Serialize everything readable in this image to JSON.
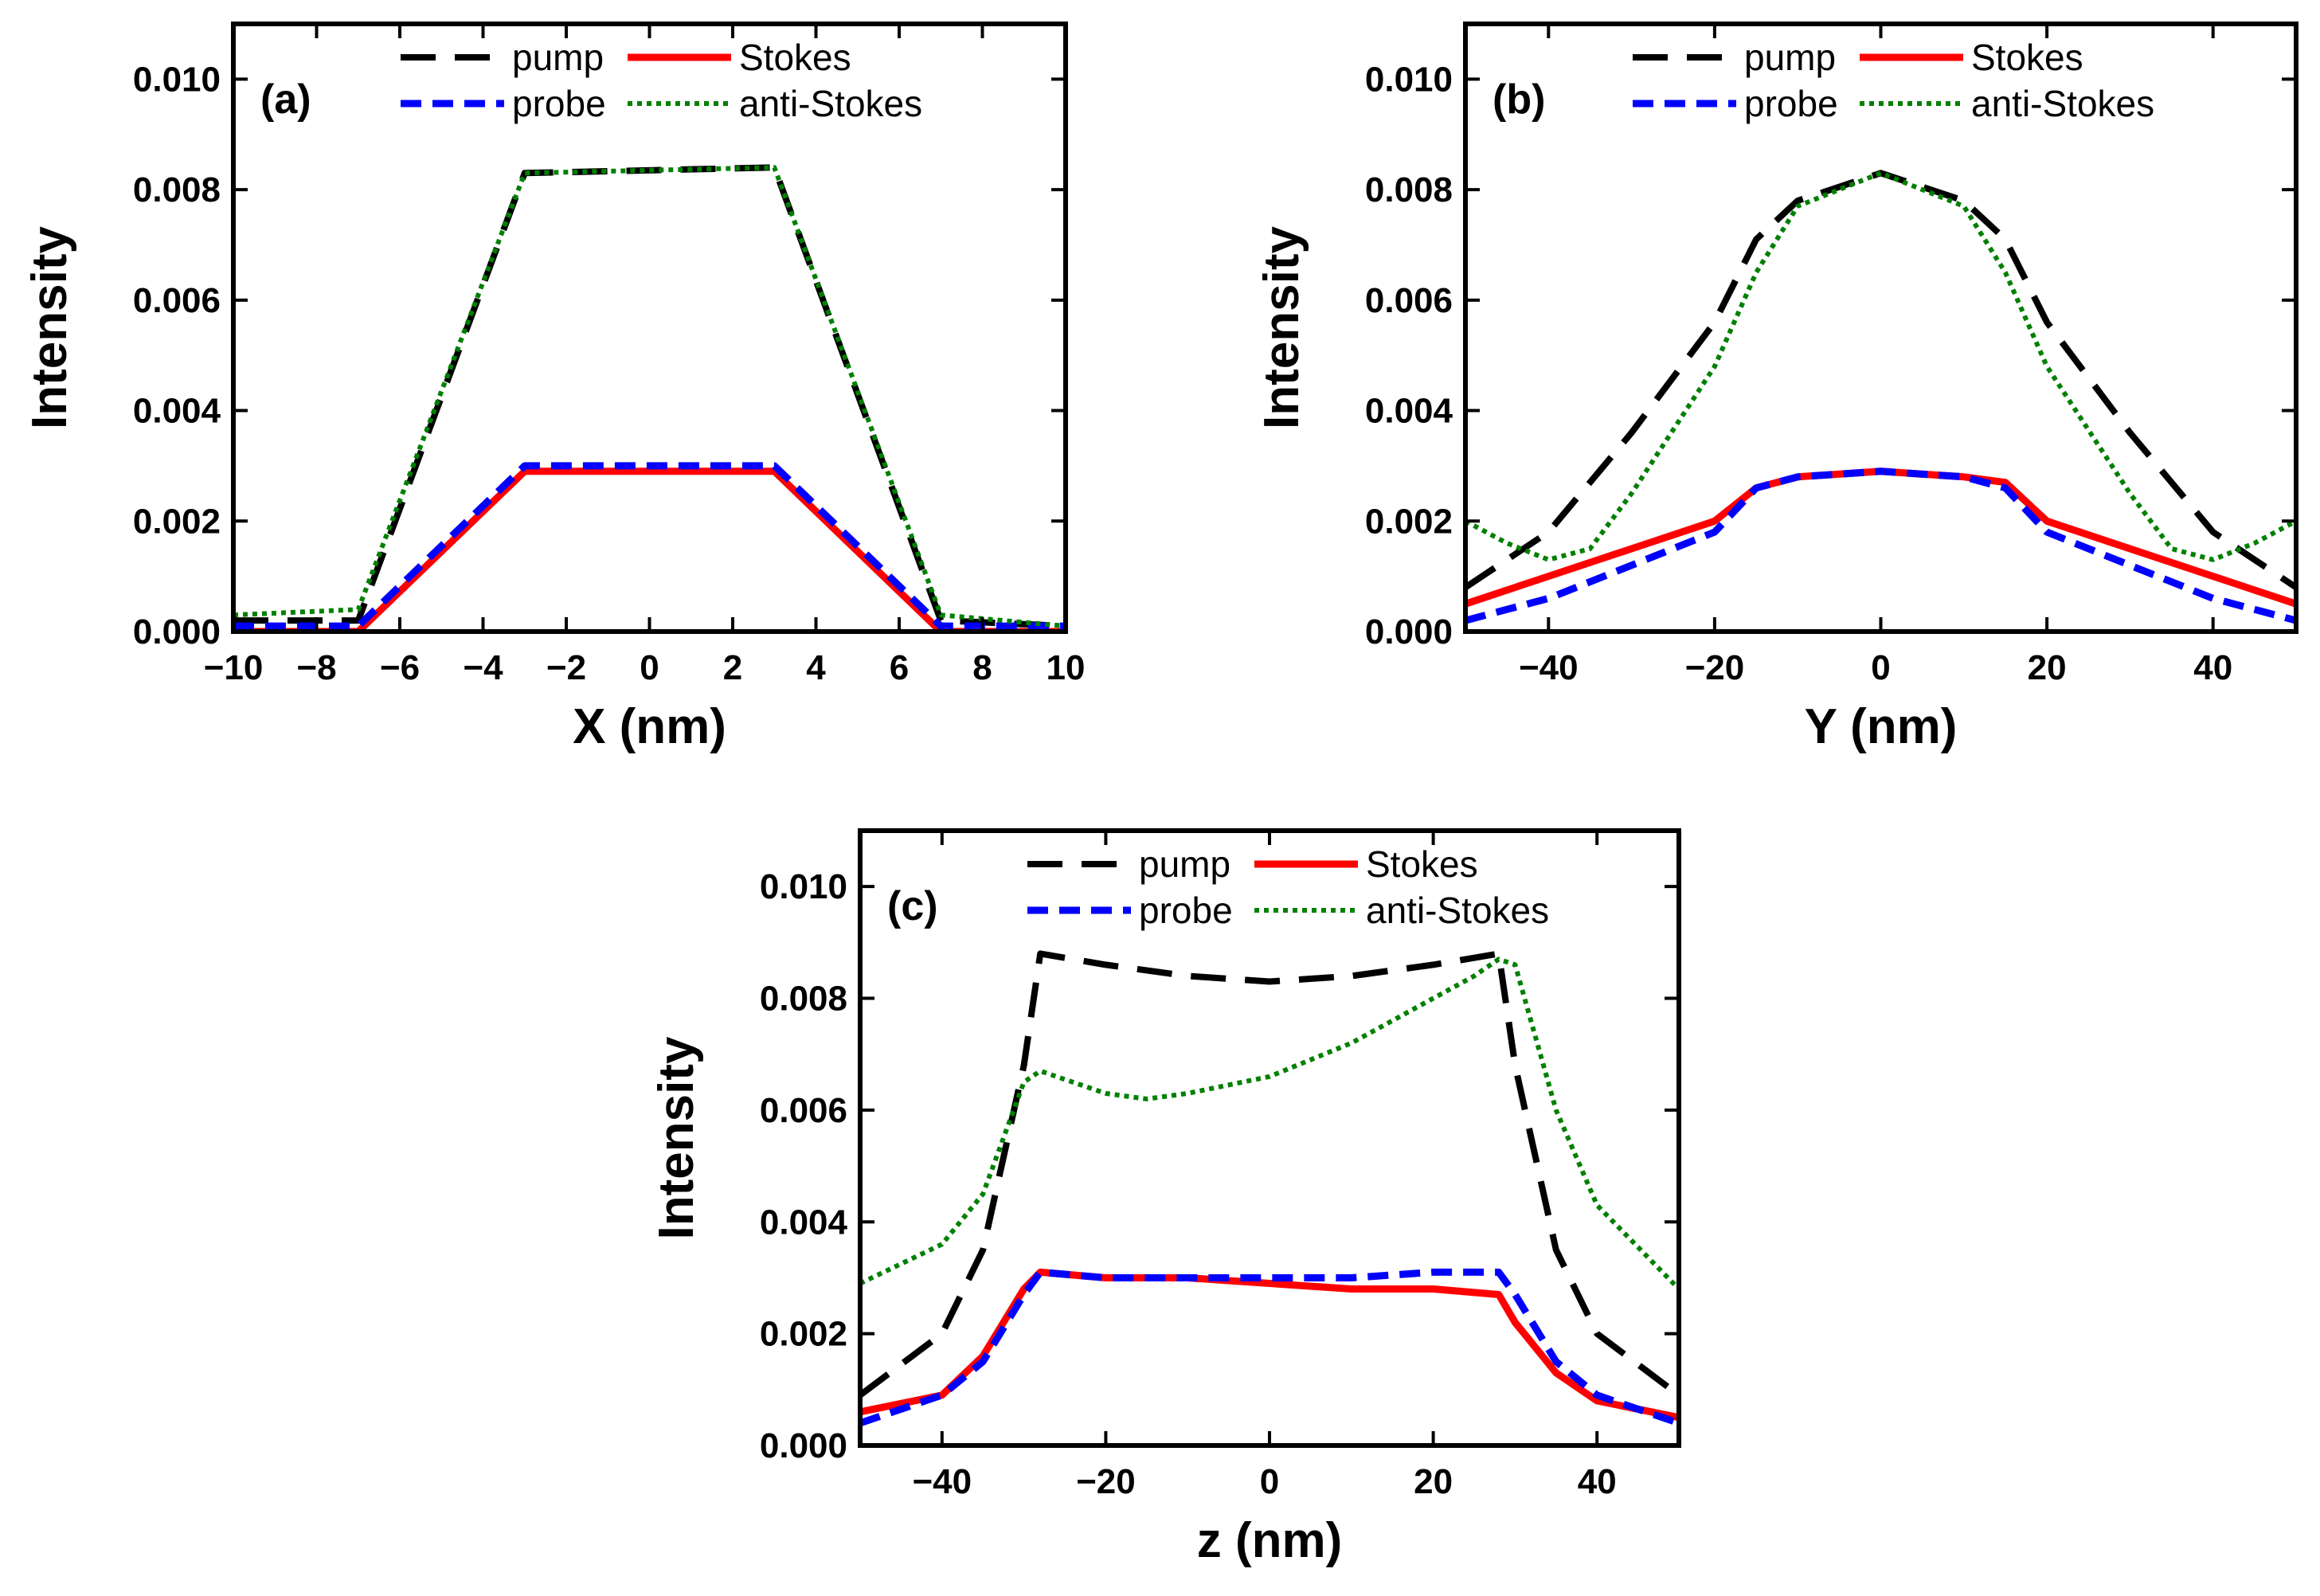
{
  "figure": {
    "style": {
      "pump": "#000000",
      "probe": "#0000ff",
      "stokes": "#ff0000",
      "anti_stokes": "#008000"
    }
  },
  "chart_data": [
    {
      "type": "line",
      "panel_label": "(a)",
      "xlabel": "X (nm)",
      "ylabel": "Intensity",
      "xlim": [
        -10,
        10
      ],
      "ylim": [
        0,
        0.011
      ],
      "xticks": [
        -10,
        -8,
        -6,
        -4,
        -2,
        0,
        2,
        4,
        6,
        8,
        10
      ],
      "xtick_labels": [
        "−10",
        "−8",
        "−6",
        "−4",
        "−2",
        "0",
        "2",
        "4",
        "6",
        "8",
        "10"
      ],
      "yticks": [
        0,
        0.002,
        0.004,
        0.006,
        0.008,
        0.01
      ],
      "ytick_labels": [
        "0.000",
        "0.002",
        "0.004",
        "0.006",
        "0.008",
        "0.010"
      ],
      "legend": [
        "pump",
        "Stokes",
        "probe",
        "anti-Stokes"
      ],
      "series": [
        {
          "name": "pump",
          "key": "pump",
          "x": [
            -10,
            -7,
            -3,
            3,
            7,
            10
          ],
          "y": [
            0.0002,
            0.0002,
            0.0083,
            0.0084,
            0.0002,
            0.0001
          ]
        },
        {
          "name": "Stokes",
          "key": "stokes",
          "x": [
            -10,
            -7,
            -3,
            3,
            7,
            10
          ],
          "y": [
            0.0,
            0.0,
            0.0029,
            0.0029,
            0.0,
            0.0
          ]
        },
        {
          "name": "probe",
          "key": "probe",
          "x": [
            -10,
            -7,
            -3,
            3,
            7,
            10
          ],
          "y": [
            0.0001,
            0.0001,
            0.003,
            0.003,
            0.0001,
            0.0001
          ]
        },
        {
          "name": "anti-Stokes",
          "key": "anti_stokes",
          "x": [
            -10,
            -7,
            -3,
            3,
            7,
            10
          ],
          "y": [
            0.0003,
            0.0004,
            0.0083,
            0.0084,
            0.0003,
            0.0001
          ]
        }
      ]
    },
    {
      "type": "line",
      "panel_label": "(b)",
      "xlabel": "Y (nm)",
      "ylabel": "Intensity",
      "xlim": [
        -50,
        50
      ],
      "ylim": [
        0,
        0.011
      ],
      "xticks": [
        -40,
        -20,
        0,
        20,
        40
      ],
      "xtick_labels": [
        "−40",
        "−20",
        "0",
        "20",
        "40"
      ],
      "yticks": [
        0,
        0.002,
        0.004,
        0.006,
        0.008,
        0.01
      ],
      "ytick_labels": [
        "0.000",
        "0.002",
        "0.004",
        "0.006",
        "0.008",
        "0.010"
      ],
      "legend": [
        "pump",
        "Stokes",
        "probe",
        "anti-Stokes"
      ],
      "series": [
        {
          "name": "pump",
          "key": "pump",
          "x": [
            -50,
            -40,
            -30,
            -20,
            -15,
            -10,
            0,
            10,
            15,
            20,
            30,
            40,
            50
          ],
          "y": [
            0.0008,
            0.0018,
            0.0036,
            0.0056,
            0.0071,
            0.0078,
            0.0083,
            0.0078,
            0.0071,
            0.0056,
            0.0036,
            0.0018,
            0.0008
          ]
        },
        {
          "name": "Stokes",
          "key": "stokes",
          "x": [
            -50,
            -40,
            -30,
            -20,
            -15,
            -10,
            0,
            10,
            15,
            20,
            30,
            40,
            50
          ],
          "y": [
            0.0005,
            0.001,
            0.0015,
            0.002,
            0.0026,
            0.0028,
            0.0029,
            0.0028,
            0.0027,
            0.002,
            0.0015,
            0.001,
            0.0005
          ]
        },
        {
          "name": "probe",
          "key": "probe",
          "x": [
            -50,
            -40,
            -30,
            -20,
            -15,
            -10,
            0,
            10,
            15,
            20,
            30,
            40,
            50
          ],
          "y": [
            0.0002,
            0.0006,
            0.0012,
            0.0018,
            0.0026,
            0.0028,
            0.0029,
            0.0028,
            0.0026,
            0.0018,
            0.0012,
            0.0006,
            0.0002
          ]
        },
        {
          "name": "anti-Stokes",
          "key": "anti_stokes",
          "x": [
            -50,
            -45,
            -40,
            -35,
            -30,
            -20,
            -15,
            -10,
            0,
            10,
            15,
            20,
            30,
            35,
            40,
            45,
            50
          ],
          "y": [
            0.002,
            0.0016,
            0.0013,
            0.0015,
            0.0025,
            0.0048,
            0.0065,
            0.0077,
            0.0083,
            0.0077,
            0.0065,
            0.0048,
            0.0025,
            0.0015,
            0.0013,
            0.0016,
            0.002
          ]
        }
      ]
    },
    {
      "type": "line",
      "panel_label": "(c)",
      "xlabel": "z (nm)",
      "ylabel": "Intensity",
      "xlim": [
        -50,
        50
      ],
      "ylim": [
        0,
        0.011
      ],
      "xticks": [
        -40,
        -20,
        0,
        20,
        40
      ],
      "xtick_labels": [
        "−40",
        "−20",
        "0",
        "20",
        "40"
      ],
      "yticks": [
        0,
        0.002,
        0.004,
        0.006,
        0.008,
        0.01
      ],
      "ytick_labels": [
        "0.000",
        "0.002",
        "0.004",
        "0.006",
        "0.008",
        "0.010"
      ],
      "legend": [
        "pump",
        "Stokes",
        "probe",
        "anti-Stokes"
      ],
      "series": [
        {
          "name": "pump",
          "key": "pump",
          "x": [
            -50,
            -40,
            -35,
            -30,
            -28,
            -20,
            -10,
            0,
            10,
            20,
            28,
            30,
            35,
            40,
            50
          ],
          "y": [
            0.0009,
            0.002,
            0.0035,
            0.0068,
            0.0088,
            0.0086,
            0.0084,
            0.0083,
            0.0084,
            0.0086,
            0.0088,
            0.0068,
            0.0035,
            0.002,
            0.0009
          ]
        },
        {
          "name": "Stokes",
          "key": "stokes",
          "x": [
            -50,
            -40,
            -35,
            -30,
            -28,
            -20,
            -10,
            0,
            10,
            20,
            28,
            30,
            35,
            40,
            50
          ],
          "y": [
            0.0006,
            0.0009,
            0.0016,
            0.0028,
            0.0031,
            0.003,
            0.003,
            0.0029,
            0.0028,
            0.0028,
            0.0027,
            0.0022,
            0.0013,
            0.0008,
            0.0005
          ]
        },
        {
          "name": "probe",
          "key": "probe",
          "x": [
            -50,
            -40,
            -35,
            -30,
            -28,
            -20,
            -10,
            0,
            10,
            20,
            28,
            30,
            35,
            40,
            50
          ],
          "y": [
            0.0004,
            0.0009,
            0.0015,
            0.0027,
            0.0031,
            0.003,
            0.003,
            0.003,
            0.003,
            0.0031,
            0.0031,
            0.0027,
            0.0015,
            0.0009,
            0.0004
          ]
        },
        {
          "name": "anti-Stokes",
          "key": "anti_stokes",
          "x": [
            -50,
            -40,
            -35,
            -30,
            -28,
            -20,
            -15,
            -10,
            0,
            10,
            20,
            25,
            28,
            30,
            35,
            40,
            50
          ],
          "y": [
            0.0029,
            0.0036,
            0.0045,
            0.0065,
            0.0067,
            0.0063,
            0.0062,
            0.0063,
            0.0066,
            0.0072,
            0.008,
            0.0084,
            0.0087,
            0.0086,
            0.006,
            0.0043,
            0.0028
          ]
        }
      ]
    }
  ]
}
